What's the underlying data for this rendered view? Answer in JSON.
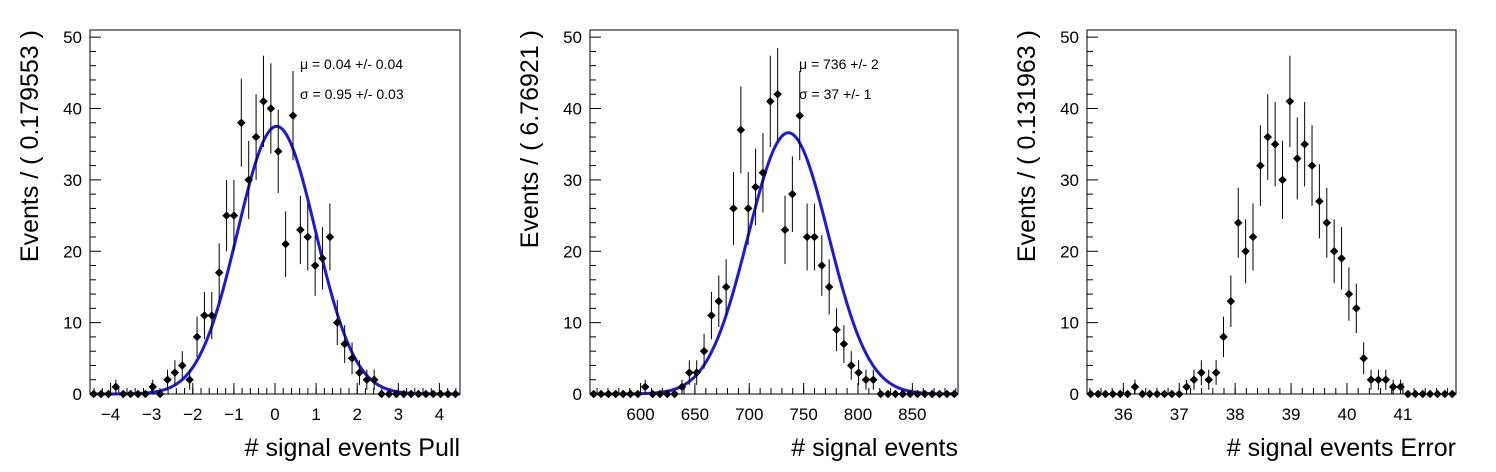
{
  "colors": {
    "fit": "#1a1adb",
    "points": "#000000"
  },
  "chart_data": [
    {
      "type": "scatter",
      "xlabel": "# signal events Pull",
      "ylabel": "Events / ( 0.179553 )",
      "xlim": [
        -4.5,
        4.5
      ],
      "ylim": [
        0,
        51
      ],
      "xticks": [
        -4,
        -3,
        -2,
        -1,
        0,
        1,
        2,
        3,
        4
      ],
      "xtick_labels": [
        "−4",
        "−3",
        "−2",
        "−1",
        "0",
        "1",
        "2",
        "3",
        "4"
      ],
      "yticks": [
        0,
        10,
        20,
        30,
        40,
        50
      ],
      "bin_start": -4.5,
      "bin_width": 0.179553,
      "values": [
        0,
        0,
        0,
        1,
        0,
        0,
        0,
        0,
        1,
        0,
        2,
        3,
        4,
        2,
        8,
        11,
        11,
        17,
        25,
        25,
        38,
        30,
        36,
        41,
        40,
        34,
        21,
        39,
        23,
        22,
        18,
        19,
        22,
        10,
        7,
        5,
        3,
        2,
        2,
        0,
        0,
        0,
        0,
        0,
        0,
        0,
        0,
        0,
        0,
        0
      ],
      "fit": {
        "mean": 0.04,
        "sigma": 0.95,
        "amplitude": 37.5
      },
      "stats": {
        "mu_label": "μ =  0.04 +/- 0.04",
        "sigma_label": "σ =  0.95 +/- 0.03"
      }
    },
    {
      "type": "scatter",
      "xlabel": "# signal events",
      "ylabel": "Events / ( 6.76921 )",
      "xlim": [
        553.5,
        892
      ],
      "ylim": [
        0,
        51
      ],
      "xticks": [
        600,
        650,
        700,
        750,
        800,
        850
      ],
      "xtick_labels": [
        "600",
        "650",
        "700",
        "750",
        "800",
        "850"
      ],
      "yticks": [
        0,
        10,
        20,
        30,
        40,
        50
      ],
      "bin_start": 553.5,
      "bin_width": 6.76921,
      "values": [
        0,
        0,
        0,
        0,
        0,
        0,
        0,
        1,
        0,
        0,
        0,
        0,
        1,
        3,
        3,
        6,
        11,
        13,
        15,
        26,
        37,
        26,
        29,
        31,
        41,
        42,
        23,
        28,
        39,
        22,
        22,
        18,
        15,
        9,
        7,
        4,
        3,
        2,
        2,
        0,
        0,
        0,
        0,
        0,
        0,
        0,
        0,
        0,
        0,
        0
      ],
      "fit": {
        "mean": 736,
        "sigma": 37,
        "amplitude": 36.6
      },
      "stats": {
        "mu_label": "μ =  736 +/- 2",
        "sigma_label": "σ =  37 +/- 1"
      }
    },
    {
      "type": "scatter",
      "xlabel": "# signal events Error",
      "ylabel": "Events / ( 0.131963 )",
      "xlim": [
        35.35,
        41.95
      ],
      "ylim": [
        0,
        51
      ],
      "xticks": [
        36,
        37,
        38,
        39,
        40,
        41
      ],
      "xtick_labels": [
        "36",
        "37",
        "38",
        "39",
        "40",
        "41"
      ],
      "yticks": [
        0,
        10,
        20,
        30,
        40,
        50
      ],
      "bin_start": 35.35,
      "bin_width": 0.131963,
      "values": [
        0,
        0,
        0,
        0,
        0,
        0,
        1,
        0,
        0,
        0,
        0,
        0,
        0,
        1,
        2,
        3,
        2,
        3,
        8,
        13,
        24,
        20,
        22,
        32,
        36,
        35,
        30,
        41,
        33,
        35,
        32,
        27,
        24,
        20,
        19,
        14,
        12,
        5,
        2,
        2,
        2,
        1,
        1,
        0,
        0,
        0,
        0,
        0,
        0,
        0
      ],
      "fit": null,
      "stats": null
    }
  ]
}
